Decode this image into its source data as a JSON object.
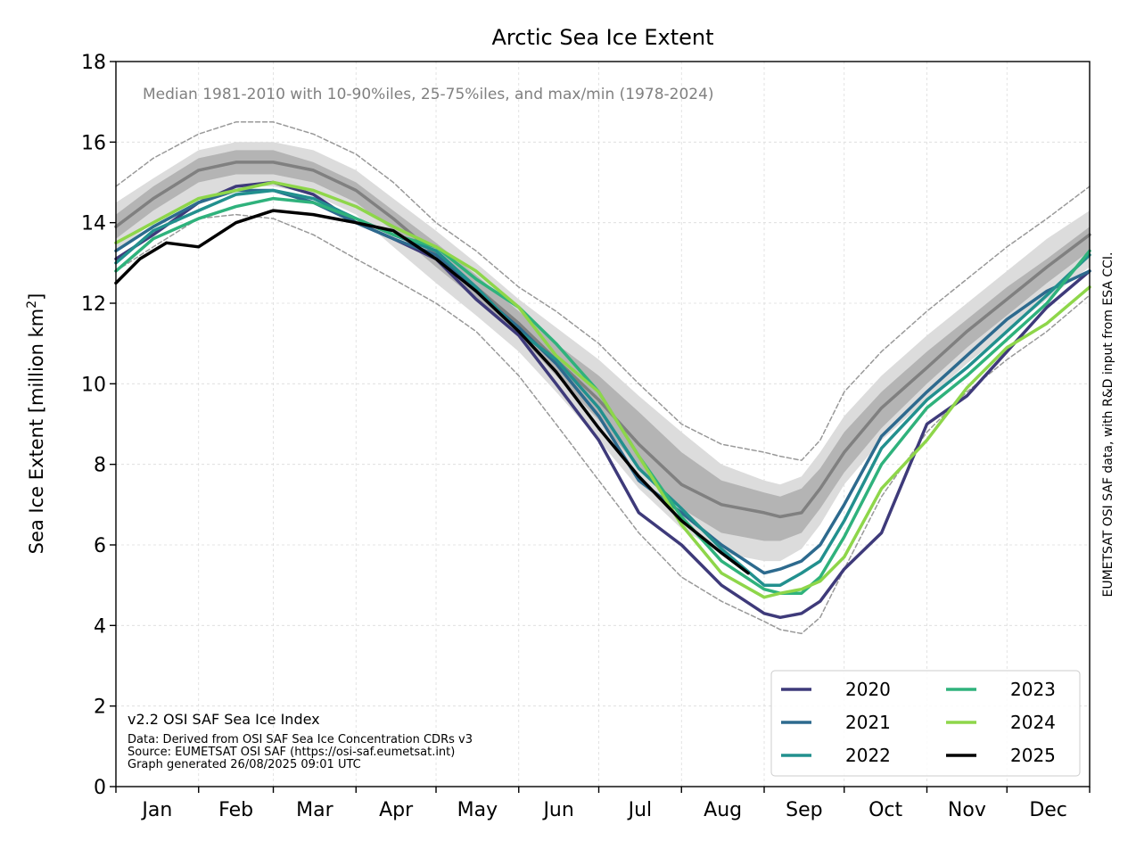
{
  "chart_data": {
    "type": "line",
    "title": "Arctic Sea Ice Extent",
    "subtitle": "Median 1981-2010 with 10-90%iles, 25-75%iles, and max/min (1978-2024)",
    "ylabel": "Sea Ice Extent [million km",
    "ylabel_sup": "2",
    "ylabel_end": "]",
    "right_label": "EUMETSAT OSI SAF data, with R&D input from ESA CCI.",
    "credits": [
      "v2.2 OSI SAF Sea Ice Index",
      "Data: Derived from OSI SAF Sea Ice Concentration CDRs v3",
      "Source: EUMETSAT OSI SAF (https://osi-saf.eumetsat.int)",
      "Graph generated 26/08/2025 09:01 UTC"
    ],
    "xlim": [
      1,
      366
    ],
    "ylim": [
      0,
      18
    ],
    "yticks": [
      "0",
      "2",
      "4",
      "6",
      "8",
      "10",
      "12",
      "14",
      "16",
      "18"
    ],
    "months": [
      "Jan",
      "Feb",
      "Mar",
      "Apr",
      "May",
      "Jun",
      "Jul",
      "Aug",
      "Sep",
      "Oct",
      "Nov",
      "Dec"
    ],
    "month_start_days": [
      1,
      32,
      60,
      91,
      121,
      152,
      182,
      213,
      244,
      274,
      305,
      335,
      366
    ],
    "grid": true,
    "legend_position": "bottom-right",
    "climatology": {
      "x": [
        1,
        15,
        32,
        46,
        60,
        75,
        91,
        105,
        121,
        136,
        152,
        166,
        182,
        197,
        213,
        228,
        244,
        250,
        258,
        265,
        274,
        288,
        305,
        320,
        335,
        350,
        366
      ],
      "max": [
        14.9,
        15.6,
        16.2,
        16.5,
        16.5,
        16.2,
        15.7,
        15.0,
        14.0,
        13.3,
        12.4,
        11.8,
        11.0,
        10.0,
        9.0,
        8.5,
        8.3,
        8.2,
        8.1,
        8.6,
        9.8,
        10.8,
        11.8,
        12.6,
        13.4,
        14.1,
        14.9
      ],
      "p90": [
        14.5,
        15.1,
        15.8,
        16.0,
        16.0,
        15.8,
        15.3,
        14.6,
        13.8,
        13.0,
        12.1,
        11.4,
        10.6,
        9.7,
        8.8,
        8.0,
        7.6,
        7.5,
        7.7,
        8.3,
        9.2,
        10.2,
        11.2,
        12.0,
        12.8,
        13.6,
        14.3
      ],
      "p75": [
        14.2,
        14.9,
        15.6,
        15.8,
        15.8,
        15.5,
        15.0,
        14.3,
        13.5,
        12.7,
        11.8,
        11.0,
        10.2,
        9.3,
        8.3,
        7.6,
        7.3,
        7.2,
        7.4,
        7.9,
        8.8,
        9.8,
        10.8,
        11.6,
        12.4,
        13.1,
        13.9
      ],
      "median": [
        13.9,
        14.6,
        15.3,
        15.5,
        15.5,
        15.3,
        14.8,
        14.1,
        13.2,
        12.4,
        11.5,
        10.6,
        9.6,
        8.5,
        7.5,
        7.0,
        6.8,
        6.7,
        6.8,
        7.4,
        8.3,
        9.4,
        10.4,
        11.3,
        12.1,
        12.9,
        13.7
      ],
      "p25": [
        13.6,
        14.3,
        15.0,
        15.2,
        15.2,
        15.0,
        14.5,
        13.8,
        12.9,
        12.1,
        11.2,
        10.2,
        9.1,
        7.9,
        6.9,
        6.3,
        6.1,
        6.1,
        6.3,
        6.9,
        7.8,
        8.9,
        10.0,
        10.9,
        11.7,
        12.5,
        13.3
      ],
      "p10": [
        13.3,
        14.0,
        14.6,
        14.9,
        14.9,
        14.7,
        14.2,
        13.4,
        12.5,
        11.7,
        10.8,
        9.8,
        8.6,
        7.4,
        6.4,
        5.8,
        5.6,
        5.6,
        5.9,
        6.5,
        7.5,
        8.6,
        9.6,
        10.5,
        11.3,
        12.1,
        12.9
      ],
      "min": [
        12.8,
        13.4,
        14.1,
        14.2,
        14.1,
        13.7,
        13.1,
        12.6,
        12.0,
        11.3,
        10.2,
        9.0,
        7.6,
        6.3,
        5.2,
        4.6,
        4.1,
        3.9,
        3.8,
        4.2,
        5.4,
        7.2,
        8.8,
        9.8,
        10.6,
        11.3,
        12.2
      ]
    },
    "series": [
      {
        "name": "2020",
        "color": "#3e3a7a",
        "x": [
          1,
          15,
          32,
          46,
          60,
          75,
          91,
          105,
          121,
          136,
          152,
          166,
          182,
          197,
          213,
          228,
          244,
          250,
          258,
          265,
          274,
          288,
          305,
          320,
          335,
          350,
          366
        ],
        "y": [
          13.1,
          13.7,
          14.5,
          14.9,
          15.0,
          14.7,
          14.0,
          13.6,
          13.1,
          12.1,
          11.2,
          10.0,
          8.6,
          6.8,
          6.0,
          5.0,
          4.3,
          4.2,
          4.3,
          4.6,
          5.4,
          6.3,
          9.0,
          9.7,
          10.8,
          11.9,
          12.8
        ]
      },
      {
        "name": "2021",
        "color": "#2d6a8e",
        "x": [
          1,
          15,
          32,
          46,
          60,
          75,
          91,
          105,
          121,
          136,
          152,
          166,
          182,
          197,
          213,
          228,
          244,
          250,
          258,
          265,
          274,
          288,
          305,
          320,
          335,
          350,
          366
        ],
        "y": [
          13.3,
          13.9,
          14.5,
          14.8,
          14.8,
          14.5,
          14.0,
          13.6,
          13.2,
          12.3,
          11.4,
          10.5,
          9.2,
          7.6,
          6.8,
          6.0,
          5.3,
          5.4,
          5.6,
          6.0,
          7.0,
          8.7,
          9.8,
          10.7,
          11.6,
          12.3,
          12.8
        ]
      },
      {
        "name": "2022",
        "color": "#22908e",
        "x": [
          1,
          15,
          32,
          46,
          60,
          75,
          91,
          105,
          121,
          136,
          152,
          166,
          182,
          197,
          213,
          228,
          244,
          250,
          258,
          265,
          274,
          288,
          305,
          320,
          335,
          350,
          366
        ],
        "y": [
          13.0,
          13.8,
          14.3,
          14.7,
          14.8,
          14.6,
          14.1,
          13.7,
          13.3,
          12.4,
          11.3,
          10.6,
          9.4,
          7.9,
          6.9,
          5.9,
          5.0,
          5.0,
          5.3,
          5.6,
          6.6,
          8.4,
          9.6,
          10.4,
          11.3,
          12.2,
          13.2
        ]
      },
      {
        "name": "2023",
        "color": "#2fb27c",
        "x": [
          1,
          15,
          32,
          46,
          60,
          75,
          91,
          105,
          121,
          136,
          152,
          166,
          182,
          197,
          213,
          228,
          244,
          250,
          258,
          265,
          274,
          288,
          305,
          320,
          335,
          350,
          366
        ],
        "y": [
          12.8,
          13.6,
          14.1,
          14.4,
          14.6,
          14.5,
          14.1,
          13.7,
          13.4,
          12.6,
          11.9,
          11.0,
          9.8,
          8.2,
          6.7,
          5.6,
          4.9,
          4.8,
          4.8,
          5.2,
          6.2,
          8.0,
          9.4,
          10.2,
          11.1,
          12.0,
          13.3
        ]
      },
      {
        "name": "2024",
        "color": "#8ed64a",
        "x": [
          1,
          15,
          32,
          46,
          60,
          75,
          91,
          105,
          121,
          136,
          152,
          166,
          182,
          197,
          213,
          228,
          244,
          250,
          258,
          265,
          274,
          288,
          305,
          320,
          335,
          350,
          366
        ],
        "y": [
          13.5,
          14.0,
          14.6,
          14.8,
          15.0,
          14.8,
          14.4,
          13.9,
          13.4,
          12.8,
          11.9,
          10.7,
          9.8,
          8.2,
          6.5,
          5.3,
          4.7,
          4.8,
          4.9,
          5.1,
          5.7,
          7.4,
          8.6,
          9.9,
          10.9,
          11.5,
          12.4
        ]
      },
      {
        "name": "2025",
        "color": "#000000",
        "x": [
          1,
          10,
          20,
          32,
          46,
          60,
          75,
          91,
          105,
          121,
          136,
          152,
          166,
          182,
          197,
          213,
          228,
          238
        ],
        "y": [
          12.5,
          13.1,
          13.5,
          13.4,
          14.0,
          14.3,
          14.2,
          14.0,
          13.8,
          13.1,
          12.3,
          11.3,
          10.3,
          8.9,
          7.7,
          6.6,
          5.8,
          5.3
        ]
      }
    ]
  }
}
